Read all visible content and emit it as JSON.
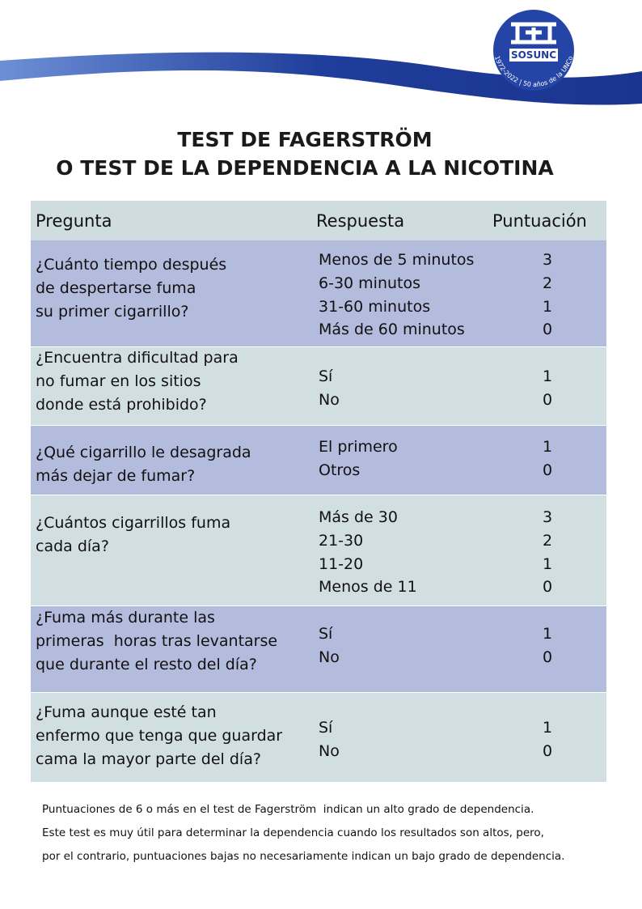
{
  "logo": {
    "name": "SOSUNC",
    "tagline": "1972-2022 | 50 años de la UNCo"
  },
  "title": [
    "TEST DE FAGERSTRÖM",
    "O TEST DE LA DEPENDENCIA A LA NICOTINA"
  ],
  "table": {
    "headers": [
      "Pregunta",
      "Respuesta",
      "Puntuación"
    ],
    "rows": [
      {
        "question": [
          "¿Cuánto tiempo después",
          "de despertarse fuma",
          "su primer cigarrillo?"
        ],
        "answers": [
          {
            "text": "Menos de 5 minutos",
            "score": 3
          },
          {
            "text": "6-30 minutos",
            "score": 2
          },
          {
            "text": "31-60 minutos",
            "score": 1
          },
          {
            "text": "Más de 60 minutos",
            "score": 0
          }
        ]
      },
      {
        "question": [
          "¿Encuentra dificultad para",
          "no fumar en los sitios",
          "donde está prohibido?"
        ],
        "answers": [
          {
            "text": "Sí",
            "score": 1
          },
          {
            "text": "No",
            "score": 0
          }
        ]
      },
      {
        "question": [
          "¿Qué cigarrillo le desagrada",
          "más dejar de fumar?"
        ],
        "answers": [
          {
            "text": "El primero",
            "score": 1
          },
          {
            "text": "Otros",
            "score": 0
          }
        ]
      },
      {
        "question": [
          "¿Cuántos cigarrillos fuma",
          "cada día?"
        ],
        "answers": [
          {
            "text": "Más de 30",
            "score": 3
          },
          {
            "text": "21-30",
            "score": 2
          },
          {
            "text": "11-20",
            "score": 1
          },
          {
            "text": "Menos de 11",
            "score": 0
          }
        ]
      },
      {
        "question": [
          "¿Fuma más durante las",
          "primeras  horas tras levantarse",
          "que durante el resto del día?"
        ],
        "answers": [
          {
            "text": "Sí",
            "score": 1
          },
          {
            "text": "No",
            "score": 0
          }
        ]
      },
      {
        "question": [
          "¿Fuma aunque esté tan",
          "enfermo que tenga que guardar",
          "cama la mayor parte del día?"
        ],
        "answers": [
          {
            "text": "Sí",
            "score": 1
          },
          {
            "text": "No",
            "score": 0
          }
        ]
      }
    ]
  },
  "footer": [
    "Puntuaciones de 6 o más en el test de Fagerström  indican un alto grado de dependencia.",
    "Este test es muy útil para determinar la dependencia cuando los resultados son altos, pero,",
    "por el contrario, puntuaciones bajas no necesariamente indican un bajo grado de dependencia."
  ]
}
